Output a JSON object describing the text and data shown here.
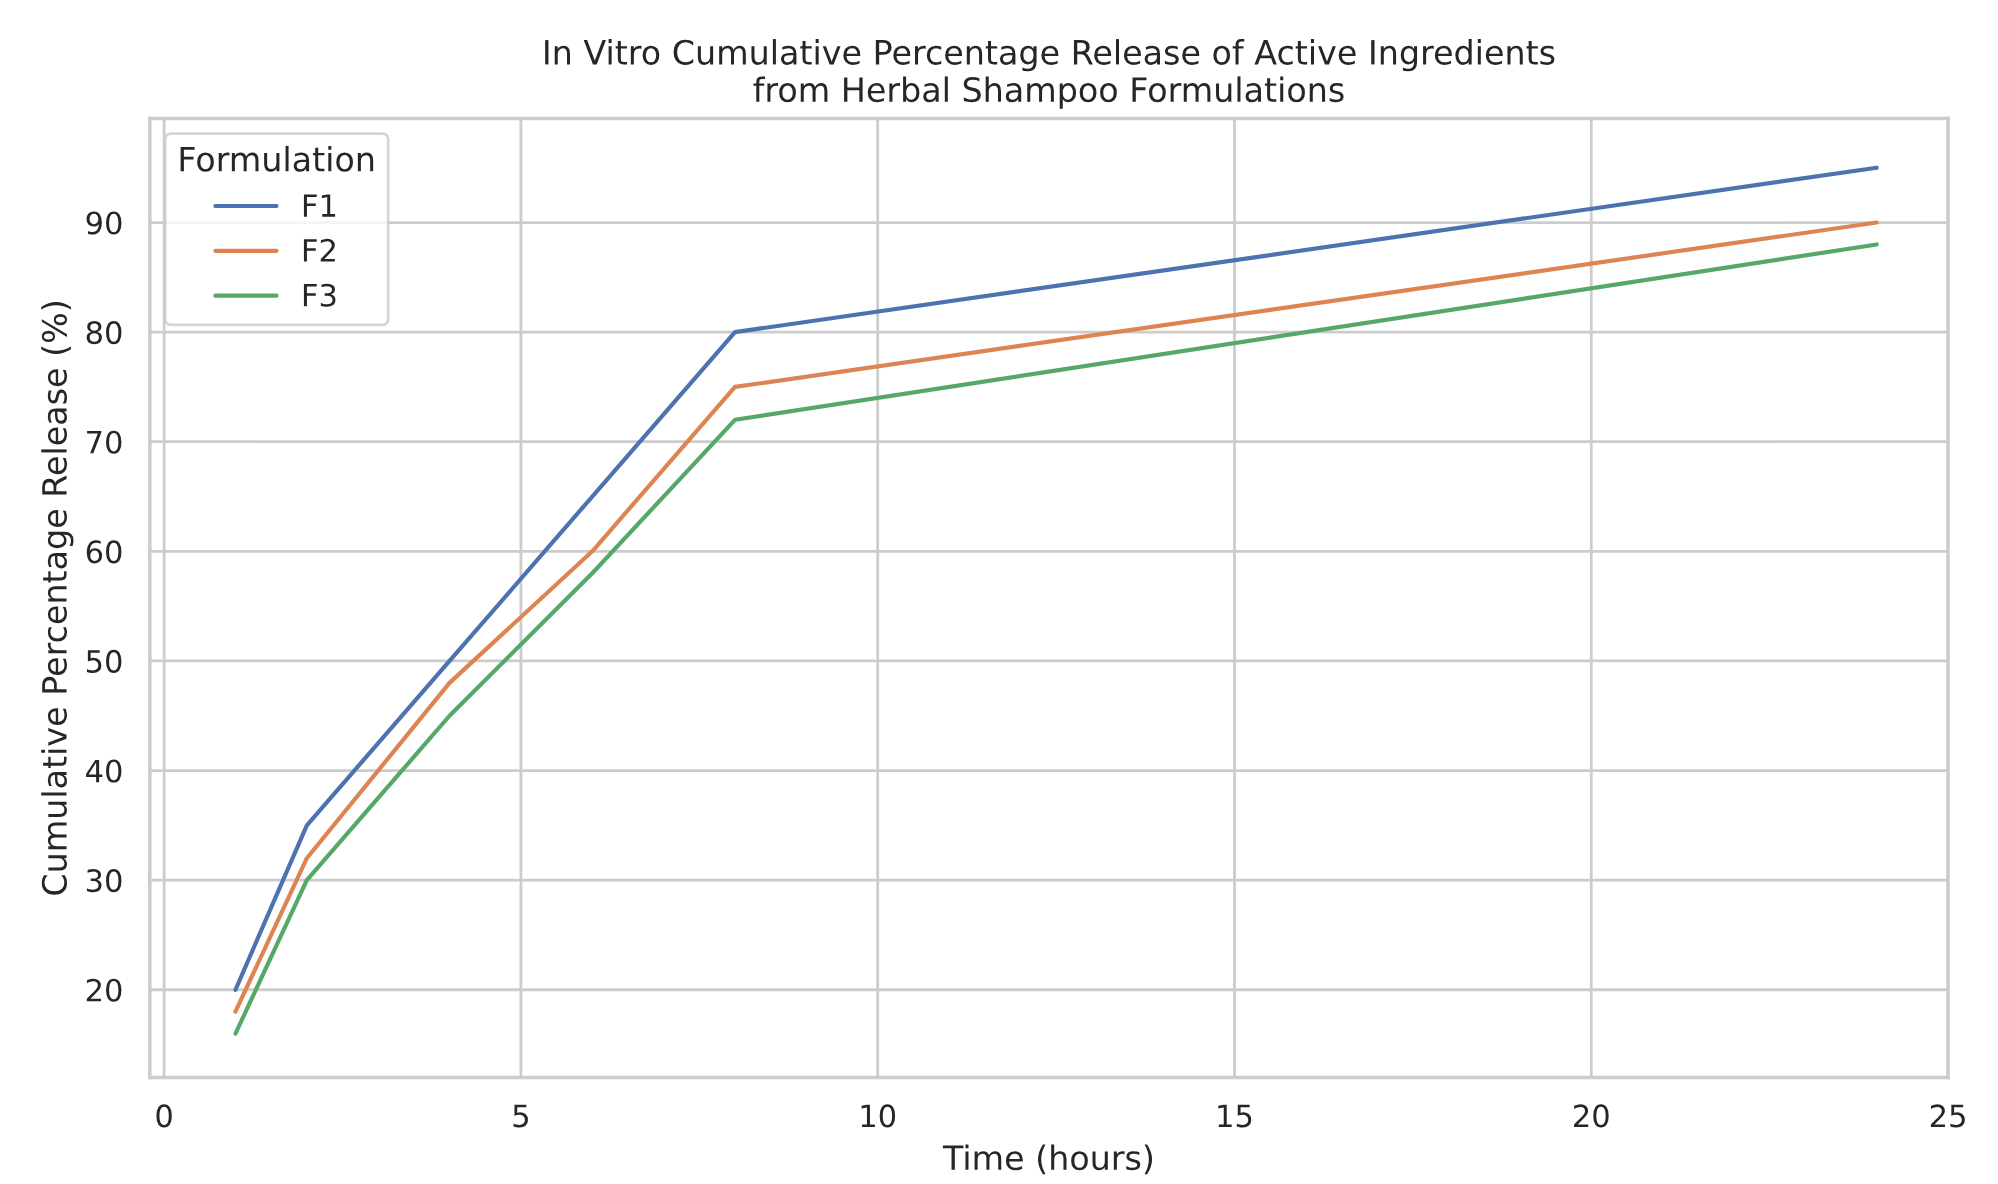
{
  "chart_data": {
    "type": "line",
    "title": "In Vitro Cumulative Percentage Release of Active Ingredients\nfrom Herbal Shampoo Formulations",
    "xlabel": "Time (hours)",
    "ylabel": "Cumulative Percentage Release (%)",
    "legend_title": "Formulation",
    "x": [
      1,
      2,
      4,
      6,
      8,
      24
    ],
    "series": [
      {
        "name": "F1",
        "color": "#4c72b0",
        "values": [
          20,
          35,
          50,
          65,
          80,
          95
        ]
      },
      {
        "name": "F2",
        "color": "#dd8452",
        "values": [
          18,
          32,
          48,
          60,
          75,
          90
        ]
      },
      {
        "name": "F3",
        "color": "#55a868",
        "values": [
          16,
          30,
          45,
          58,
          72,
          88
        ]
      }
    ],
    "xlim": [
      -0.2,
      25
    ],
    "xticks": [
      0,
      5,
      10,
      15,
      20,
      25
    ],
    "ylim": [
      12,
      99.5
    ],
    "yticks": [
      20,
      30,
      40,
      50,
      60,
      70,
      80,
      90
    ],
    "grid": true,
    "legend": "top left",
    "marker": "none",
    "line_style": "solid"
  }
}
